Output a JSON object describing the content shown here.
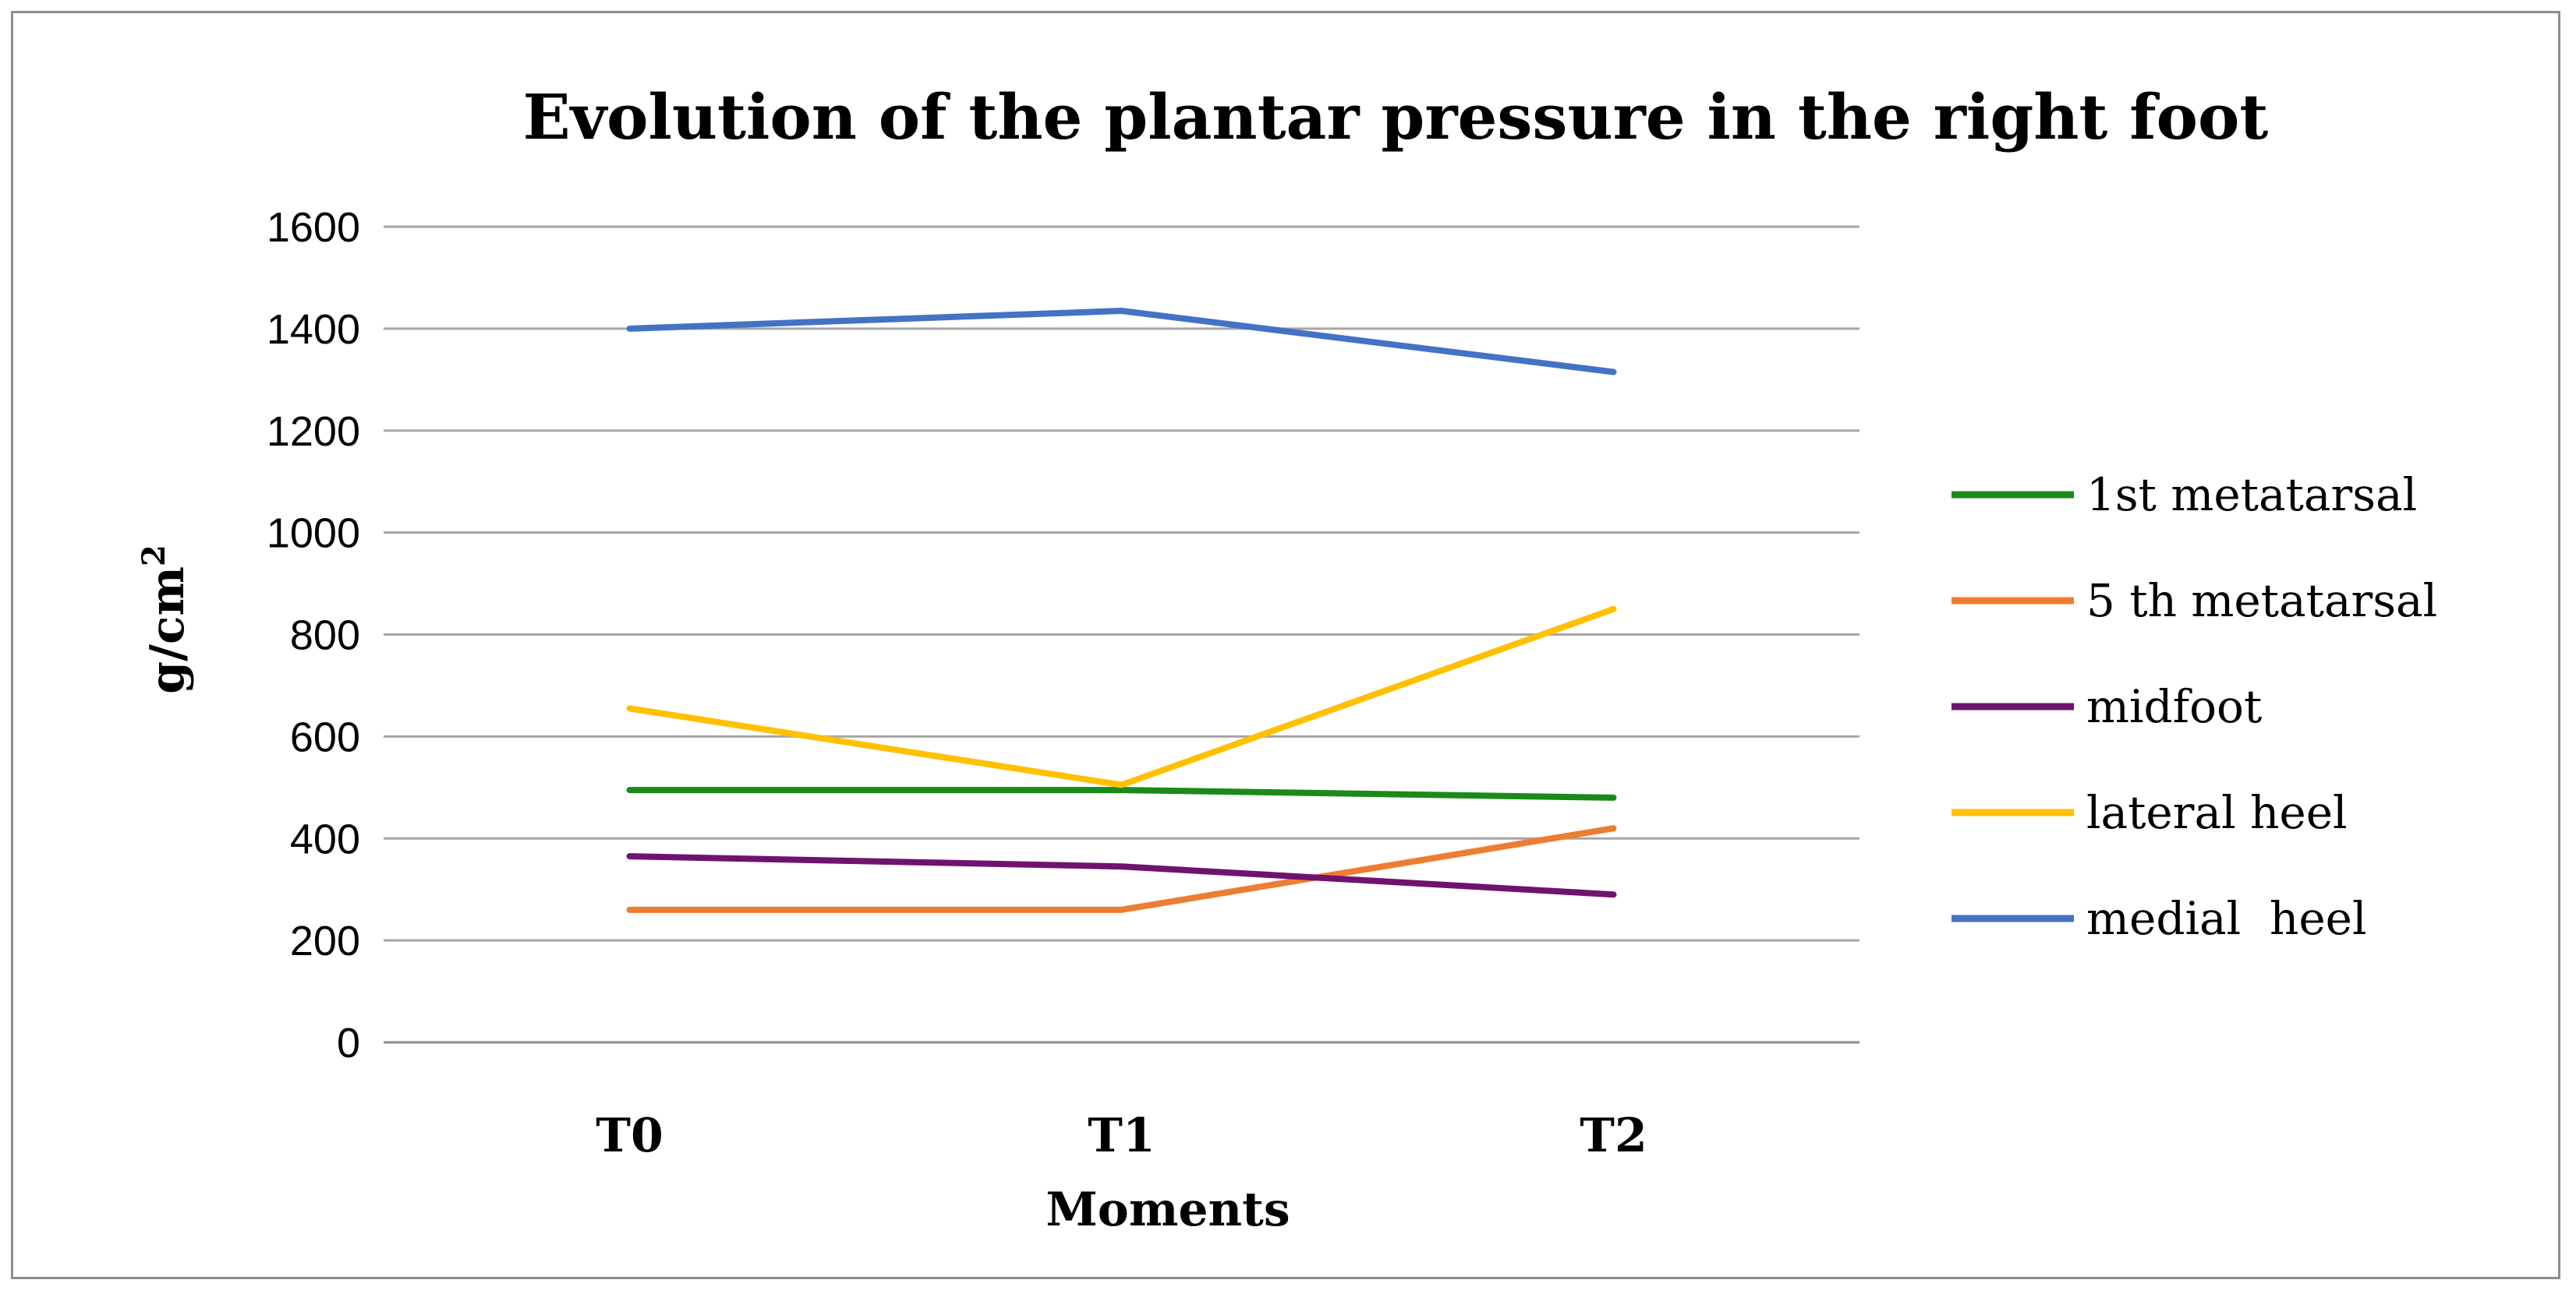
{
  "chart_data": {
    "type": "line",
    "title": "Evolution of the plantar pressure in the right foot",
    "xlabel": "Moments",
    "ylabel": "g/cm",
    "ylabel_superscript": "2",
    "categories": [
      "T0",
      "T1",
      "T2"
    ],
    "ylim": [
      0,
      1600
    ],
    "yticks": [
      0,
      200,
      400,
      600,
      800,
      1000,
      1200,
      1400,
      1600
    ],
    "grid": true,
    "legend_position": "right",
    "series": [
      {
        "name": "1st metatarsal",
        "color": "#1a8a1a",
        "values": [
          495,
          495,
          480
        ]
      },
      {
        "name": "5 th metatarsal",
        "color": "#ed7d31",
        "values": [
          260,
          260,
          420
        ]
      },
      {
        "name": "midfoot",
        "color": "#70136e",
        "values": [
          365,
          345,
          290
        ]
      },
      {
        "name": "lateral heel",
        "color": "#ffc000",
        "values": [
          655,
          505,
          850
        ]
      },
      {
        "name": "medial  heel",
        "color": "#4472c4",
        "values": [
          1400,
          1435,
          1315
        ]
      }
    ]
  }
}
